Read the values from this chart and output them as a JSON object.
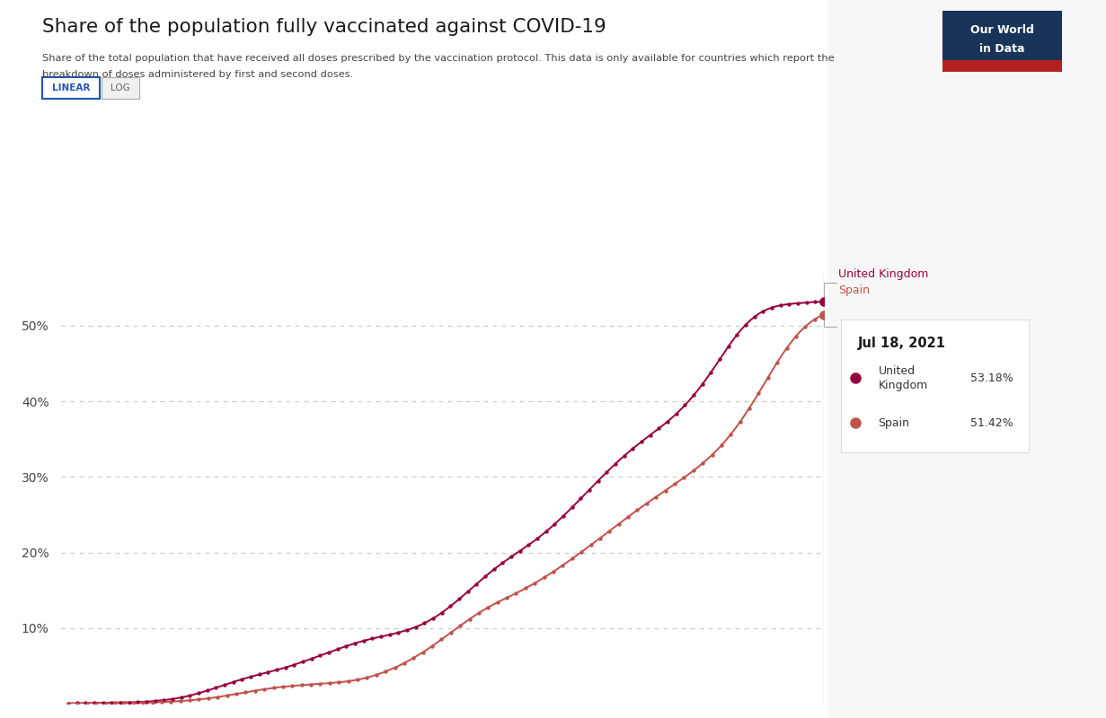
{
  "title": "Share of the population fully vaccinated against COVID-19",
  "subtitle1": "Share of the total population that have received all doses prescribed by the vaccination protocol. This data is only available for countries which report the",
  "subtitle2": "breakdown of doses administered by first and second doses.",
  "background_color": "#ffffff",
  "right_panel_color": "#f7f7f7",
  "plot_bg_color": "#ffffff",
  "uk_color": "#970040",
  "spain_color": "#c0524a",
  "uk_label": "United Kingdom",
  "spain_label": "Spain",
  "tooltip_date": "Jul 18, 2021",
  "tooltip_uk_val": "53.18%",
  "tooltip_spain_val": "51.42%",
  "y_ticks": [
    10,
    20,
    30,
    40,
    50
  ],
  "y_max": 57,
  "y_min": 0,
  "owid_bg": "#1a3358",
  "owid_red": "#b22222",
  "linear_btn_color": "#2255bb",
  "uk_data": [
    0.05,
    0.05,
    0.06,
    0.06,
    0.07,
    0.07,
    0.08,
    0.09,
    0.1,
    0.11,
    0.12,
    0.13,
    0.14,
    0.16,
    0.17,
    0.19,
    0.21,
    0.24,
    0.27,
    0.31,
    0.36,
    0.41,
    0.47,
    0.54,
    0.62,
    0.71,
    0.82,
    0.94,
    1.07,
    1.22,
    1.38,
    1.55,
    1.73,
    1.92,
    2.11,
    2.3,
    2.49,
    2.68,
    2.87,
    3.05,
    3.23,
    3.4,
    3.56,
    3.72,
    3.87,
    4.02,
    4.16,
    4.31,
    4.46,
    4.62,
    4.79,
    4.96,
    5.15,
    5.34,
    5.54,
    5.74,
    5.95,
    6.16,
    6.37,
    6.58,
    6.79,
    7.0,
    7.21,
    7.42,
    7.62,
    7.81,
    7.99,
    8.16,
    8.32,
    8.47,
    8.61,
    8.74,
    8.87,
    9.0,
    9.13,
    9.26,
    9.41,
    9.57,
    9.74,
    9.93,
    10.15,
    10.39,
    10.66,
    10.96,
    11.29,
    11.65,
    12.04,
    12.46,
    12.9,
    13.36,
    13.84,
    14.33,
    14.83,
    15.34,
    15.84,
    16.34,
    16.83,
    17.3,
    17.76,
    18.2,
    18.63,
    19.04,
    19.44,
    19.83,
    20.22,
    20.61,
    21.01,
    21.42,
    21.85,
    22.3,
    22.77,
    23.26,
    23.77,
    24.3,
    24.84,
    25.4,
    25.97,
    26.55,
    27.14,
    27.73,
    28.32,
    28.91,
    29.5,
    30.08,
    30.65,
    31.21,
    31.75,
    32.28,
    32.79,
    33.28,
    33.76,
    34.22,
    34.67,
    35.11,
    35.55,
    35.98,
    36.42,
    36.87,
    37.34,
    37.83,
    38.35,
    38.91,
    39.5,
    40.13,
    40.8,
    41.51,
    42.26,
    43.04,
    43.86,
    44.7,
    45.56,
    46.42,
    47.27,
    48.08,
    48.84,
    49.53,
    50.15,
    50.7,
    51.18,
    51.59,
    51.92,
    52.19,
    52.41,
    52.58,
    52.71,
    52.8,
    52.88,
    52.93,
    52.98,
    53.03,
    53.08,
    53.12,
    53.15,
    53.17,
    53.18
  ],
  "spain_data": [
    0.02,
    0.02,
    0.03,
    0.03,
    0.03,
    0.04,
    0.04,
    0.05,
    0.05,
    0.06,
    0.07,
    0.07,
    0.08,
    0.09,
    0.1,
    0.11,
    0.13,
    0.14,
    0.16,
    0.18,
    0.21,
    0.24,
    0.27,
    0.3,
    0.34,
    0.38,
    0.43,
    0.49,
    0.55,
    0.62,
    0.7,
    0.78,
    0.87,
    0.97,
    1.07,
    1.17,
    1.28,
    1.39,
    1.5,
    1.61,
    1.72,
    1.82,
    1.91,
    2.0,
    2.08,
    2.16,
    2.23,
    2.29,
    2.35,
    2.4,
    2.45,
    2.5,
    2.55,
    2.59,
    2.63,
    2.68,
    2.72,
    2.77,
    2.83,
    2.89,
    2.97,
    3.06,
    3.17,
    3.3,
    3.45,
    3.62,
    3.81,
    4.02,
    4.25,
    4.5,
    4.77,
    5.06,
    5.37,
    5.7,
    6.05,
    6.42,
    6.8,
    7.2,
    7.62,
    8.05,
    8.5,
    8.95,
    9.4,
    9.85,
    10.3,
    10.75,
    11.18,
    11.6,
    12.0,
    12.38,
    12.74,
    13.08,
    13.4,
    13.71,
    14.01,
    14.31,
    14.62,
    14.93,
    15.26,
    15.6,
    15.95,
    16.31,
    16.69,
    17.08,
    17.48,
    17.89,
    18.31,
    18.74,
    19.18,
    19.62,
    20.07,
    20.52,
    20.98,
    21.44,
    21.9,
    22.37,
    22.84,
    23.31,
    23.78,
    24.25,
    24.71,
    25.17,
    25.62,
    26.06,
    26.5,
    26.93,
    27.36,
    27.78,
    28.2,
    28.62,
    29.05,
    29.48,
    29.91,
    30.36,
    30.82,
    31.3,
    31.81,
    32.34,
    32.91,
    33.52,
    34.17,
    34.87,
    35.62,
    36.42,
    37.27,
    38.17,
    39.11,
    40.09,
    41.1,
    42.13,
    43.16,
    44.18,
    45.18,
    46.13,
    47.03,
    47.86,
    48.62,
    49.3,
    49.9,
    50.42,
    50.86,
    51.22,
    51.42
  ]
}
